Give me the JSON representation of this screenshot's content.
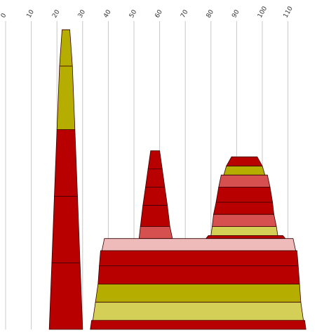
{
  "chart_data": {
    "type": "area",
    "xlim": [
      0,
      120
    ],
    "ylim": [
      0,
      100
    ],
    "grid": true,
    "x_ticks": [
      "0",
      "10",
      "20",
      "30",
      "40",
      "50",
      "60",
      "70",
      "80",
      "90",
      "100",
      "110"
    ],
    "colors": {
      "red": "#b80000",
      "olive": "#b5ad00",
      "salmon": "#d65050",
      "yellow": "#d3cf57",
      "pink": "#efbaba",
      "stroke": "#3a0000",
      "grid": "#c8c8c8"
    },
    "stacks": [
      {
        "segments": [
          {
            "bottom": 0,
            "top": 22,
            "bl": 17,
            "br": 30,
            "tl": 18,
            "tr": 29,
            "color": "red"
          },
          {
            "bottom": 22,
            "top": 44,
            "bl": 18,
            "br": 29,
            "tl": 19,
            "tr": 28,
            "color": "red"
          },
          {
            "bottom": 44,
            "top": 66,
            "bl": 19,
            "br": 28,
            "tl": 20,
            "tr": 27,
            "color": "red"
          },
          {
            "bottom": 66,
            "top": 87,
            "bl": 20,
            "br": 27,
            "tl": 21,
            "tr": 26,
            "color": "olive"
          },
          {
            "bottom": 87,
            "top": 99,
            "bl": 21,
            "br": 26,
            "tl": 22,
            "tr": 25,
            "color": "olive"
          }
        ]
      },
      {
        "segments": [
          {
            "bottom": 30,
            "top": 34,
            "bl": 52,
            "br": 65,
            "tl": 52.5,
            "tr": 64,
            "color": "salmon"
          },
          {
            "bottom": 34,
            "top": 41,
            "bl": 52.5,
            "br": 64,
            "tl": 53.5,
            "tr": 63,
            "color": "red"
          },
          {
            "bottom": 41,
            "top": 47,
            "bl": 53.5,
            "br": 63,
            "tl": 54.5,
            "tr": 62,
            "color": "red"
          },
          {
            "bottom": 47,
            "top": 53,
            "bl": 54.5,
            "br": 62,
            "tl": 55.5,
            "tr": 61,
            "color": "red"
          },
          {
            "bottom": 53,
            "top": 59,
            "bl": 55.5,
            "br": 61,
            "tl": 56.5,
            "tr": 60,
            "color": "red"
          }
        ]
      },
      {
        "segments": [
          {
            "bottom": 30,
            "top": 31,
            "bl": 78,
            "br": 109,
            "tl": 79,
            "tr": 108,
            "color": "red"
          },
          {
            "bottom": 31,
            "top": 34,
            "bl": 80,
            "br": 106,
            "tl": 80.5,
            "tr": 105.5,
            "color": "yellow"
          },
          {
            "bottom": 34,
            "top": 38,
            "bl": 80.5,
            "br": 105.5,
            "tl": 81,
            "tr": 104.5,
            "color": "salmon"
          },
          {
            "bottom": 38,
            "top": 42,
            "bl": 81,
            "br": 104.5,
            "tl": 82,
            "tr": 104,
            "color": "red"
          },
          {
            "bottom": 42,
            "top": 47,
            "bl": 82,
            "br": 104,
            "tl": 83,
            "tr": 103,
            "color": "red"
          },
          {
            "bottom": 47,
            "top": 51,
            "bl": 83,
            "br": 103,
            "tl": 84,
            "tr": 102,
            "color": "salmon"
          },
          {
            "bottom": 51,
            "top": 54,
            "bl": 85,
            "br": 101,
            "tl": 86,
            "tr": 100,
            "color": "olive"
          },
          {
            "bottom": 54,
            "top": 57,
            "bl": 86,
            "br": 100,
            "tl": 88,
            "tr": 98,
            "color": "red"
          }
        ]
      },
      {
        "segments": [
          {
            "bottom": 0,
            "top": 3,
            "bl": 33,
            "br": 117,
            "tl": 33.5,
            "tr": 116.5,
            "color": "red"
          },
          {
            "bottom": 3,
            "top": 9,
            "bl": 34,
            "br": 116,
            "tl": 35,
            "tr": 115,
            "color": "yellow"
          },
          {
            "bottom": 9,
            "top": 15,
            "bl": 35,
            "br": 115,
            "tl": 36,
            "tr": 114.5,
            "color": "olive"
          },
          {
            "bottom": 15,
            "top": 21,
            "bl": 36,
            "br": 114.5,
            "tl": 36.5,
            "tr": 114,
            "color": "red"
          },
          {
            "bottom": 21,
            "top": 26,
            "bl": 36.5,
            "br": 114,
            "tl": 37,
            "tr": 113.5,
            "color": "red"
          },
          {
            "bottom": 26,
            "top": 30,
            "bl": 37.5,
            "br": 113,
            "tl": 38.5,
            "tr": 112,
            "color": "pink"
          }
        ]
      }
    ]
  }
}
